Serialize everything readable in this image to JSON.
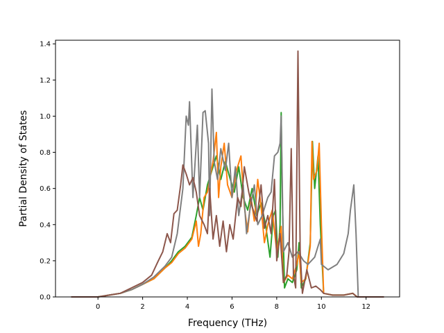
{
  "chart_data": {
    "type": "line",
    "xlabel": "Frequency (THz)",
    "ylabel": "Partial Density of States",
    "xlim": [
      -1.9,
      13.5
    ],
    "ylim": [
      0.0,
      1.42
    ],
    "xticks": [
      0,
      2,
      4,
      6,
      8,
      10,
      12
    ],
    "yticks": [
      0.0,
      0.2,
      0.4,
      0.6,
      0.8,
      1.0,
      1.2,
      1.4
    ],
    "tick_labels_x": [
      "0",
      "2",
      "4",
      "6",
      "8",
      "10",
      "12"
    ],
    "tick_labels_y": [
      "0.0",
      "0.2",
      "0.4",
      "0.6",
      "0.8",
      "1.0",
      "1.2",
      "1.4"
    ],
    "grid": false,
    "legend": "none",
    "series": [
      {
        "color": "#2ca02c",
        "points": [
          [
            -1.2,
            0
          ],
          [
            0,
            0
          ],
          [
            0.5,
            0.01
          ],
          [
            1.0,
            0.02
          ],
          [
            1.5,
            0.04
          ],
          [
            2.0,
            0.07
          ],
          [
            2.5,
            0.1
          ],
          [
            3.0,
            0.16
          ],
          [
            3.3,
            0.2
          ],
          [
            3.6,
            0.25
          ],
          [
            3.9,
            0.28
          ],
          [
            4.2,
            0.33
          ],
          [
            4.4,
            0.45
          ],
          [
            4.55,
            0.55
          ],
          [
            4.7,
            0.48
          ],
          [
            4.9,
            0.62
          ],
          [
            5.1,
            0.7
          ],
          [
            5.3,
            0.78
          ],
          [
            5.5,
            0.65
          ],
          [
            5.7,
            0.75
          ],
          [
            5.9,
            0.66
          ],
          [
            6.1,
            0.58
          ],
          [
            6.3,
            0.72
          ],
          [
            6.5,
            0.55
          ],
          [
            6.7,
            0.48
          ],
          [
            6.9,
            0.6
          ],
          [
            7.1,
            0.45
          ],
          [
            7.3,
            0.52
          ],
          [
            7.5,
            0.4
          ],
          [
            7.7,
            0.22
          ],
          [
            7.85,
            0.45
          ],
          [
            7.95,
            0.48
          ],
          [
            8.05,
            0.22
          ],
          [
            8.15,
            0.4
          ],
          [
            8.2,
            1.02
          ],
          [
            8.25,
            0.55
          ],
          [
            8.35,
            0.05
          ],
          [
            8.5,
            0.1
          ],
          [
            8.7,
            0.08
          ],
          [
            8.9,
            0.15
          ],
          [
            9.0,
            0.3
          ],
          [
            9.1,
            0.05
          ],
          [
            9.3,
            0.1
          ],
          [
            9.5,
            0.3
          ],
          [
            9.6,
            0.86
          ],
          [
            9.7,
            0.6
          ],
          [
            9.85,
            0.78
          ],
          [
            9.95,
            0.4
          ],
          [
            10.1,
            0.02
          ],
          [
            10.5,
            0.01
          ],
          [
            11.0,
            0.01
          ],
          [
            11.4,
            0.02
          ],
          [
            11.6,
            0
          ],
          [
            12.8,
            0
          ]
        ]
      },
      {
        "color": "#ff7f0e",
        "points": [
          [
            -1.2,
            0
          ],
          [
            0,
            0
          ],
          [
            0.5,
            0.01
          ],
          [
            1.0,
            0.02
          ],
          [
            1.5,
            0.04
          ],
          [
            2.0,
            0.07
          ],
          [
            2.5,
            0.1
          ],
          [
            3.0,
            0.16
          ],
          [
            3.3,
            0.19
          ],
          [
            3.6,
            0.24
          ],
          [
            3.9,
            0.27
          ],
          [
            4.2,
            0.32
          ],
          [
            4.4,
            0.42
          ],
          [
            4.5,
            0.28
          ],
          [
            4.6,
            0.35
          ],
          [
            4.75,
            0.55
          ],
          [
            4.9,
            0.58
          ],
          [
            5.0,
            0.65
          ],
          [
            5.15,
            0.75
          ],
          [
            5.3,
            0.91
          ],
          [
            5.4,
            0.55
          ],
          [
            5.5,
            0.72
          ],
          [
            5.65,
            0.85
          ],
          [
            5.8,
            0.62
          ],
          [
            6.0,
            0.55
          ],
          [
            6.2,
            0.7
          ],
          [
            6.4,
            0.78
          ],
          [
            6.55,
            0.5
          ],
          [
            6.7,
            0.36
          ],
          [
            6.85,
            0.55
          ],
          [
            7.0,
            0.42
          ],
          [
            7.15,
            0.65
          ],
          [
            7.3,
            0.5
          ],
          [
            7.45,
            0.3
          ],
          [
            7.6,
            0.4
          ],
          [
            7.8,
            0.48
          ],
          [
            8.0,
            0.25
          ],
          [
            8.2,
            0.39
          ],
          [
            8.3,
            0.08
          ],
          [
            8.5,
            0.12
          ],
          [
            8.7,
            0.1
          ],
          [
            8.9,
            0.18
          ],
          [
            9.0,
            0.25
          ],
          [
            9.1,
            0.08
          ],
          [
            9.3,
            0.1
          ],
          [
            9.5,
            0.28
          ],
          [
            9.58,
            0.86
          ],
          [
            9.65,
            0.65
          ],
          [
            9.8,
            0.7
          ],
          [
            9.9,
            0.85
          ],
          [
            10.0,
            0.4
          ],
          [
            10.1,
            0.02
          ],
          [
            10.5,
            0.01
          ],
          [
            11.0,
            0.01
          ],
          [
            11.4,
            0.02
          ],
          [
            11.6,
            0
          ],
          [
            12.8,
            0
          ]
        ]
      },
      {
        "color": "#7f7f7f",
        "points": [
          [
            -1.2,
            0
          ],
          [
            0,
            0
          ],
          [
            0.5,
            0.01
          ],
          [
            1.0,
            0.02
          ],
          [
            1.5,
            0.04
          ],
          [
            2.0,
            0.07
          ],
          [
            2.5,
            0.11
          ],
          [
            3.0,
            0.17
          ],
          [
            3.3,
            0.22
          ],
          [
            3.55,
            0.35
          ],
          [
            3.8,
            0.6
          ],
          [
            3.95,
            1.0
          ],
          [
            4.05,
            0.95
          ],
          [
            4.1,
            1.08
          ],
          [
            4.25,
            0.55
          ],
          [
            4.45,
            0.95
          ],
          [
            4.55,
            0.55
          ],
          [
            4.7,
            1.02
          ],
          [
            4.8,
            1.03
          ],
          [
            4.95,
            0.85
          ],
          [
            5.0,
            0.45
          ],
          [
            5.1,
            1.15
          ],
          [
            5.2,
            0.75
          ],
          [
            5.35,
            0.65
          ],
          [
            5.5,
            0.82
          ],
          [
            5.7,
            0.7
          ],
          [
            5.85,
            0.85
          ],
          [
            6.0,
            0.55
          ],
          [
            6.15,
            0.72
          ],
          [
            6.3,
            0.45
          ],
          [
            6.5,
            0.62
          ],
          [
            6.65,
            0.35
          ],
          [
            6.8,
            0.48
          ],
          [
            7.0,
            0.62
          ],
          [
            7.15,
            0.4
          ],
          [
            7.35,
            0.45
          ],
          [
            7.6,
            0.55
          ],
          [
            7.75,
            0.58
          ],
          [
            7.9,
            0.78
          ],
          [
            8.05,
            0.8
          ],
          [
            8.15,
            0.85
          ],
          [
            8.2,
            1.0
          ],
          [
            8.3,
            0.25
          ],
          [
            8.5,
            0.3
          ],
          [
            8.7,
            0.22
          ],
          [
            8.95,
            0.25
          ],
          [
            9.2,
            0.2
          ],
          [
            9.4,
            0.18
          ],
          [
            9.7,
            0.22
          ],
          [
            9.85,
            0.28
          ],
          [
            9.95,
            0.32
          ],
          [
            10.0,
            0.18
          ],
          [
            10.3,
            0.15
          ],
          [
            10.7,
            0.18
          ],
          [
            11.0,
            0.24
          ],
          [
            11.2,
            0.35
          ],
          [
            11.3,
            0.48
          ],
          [
            11.45,
            0.62
          ],
          [
            11.55,
            0.35
          ],
          [
            11.65,
            0
          ],
          [
            12.8,
            0
          ]
        ]
      },
      {
        "color": "#8c564b",
        "points": [
          [
            -1.2,
            0
          ],
          [
            0,
            0
          ],
          [
            0.5,
            0.01
          ],
          [
            1.0,
            0.02
          ],
          [
            1.5,
            0.05
          ],
          [
            2.0,
            0.08
          ],
          [
            2.4,
            0.12
          ],
          [
            2.7,
            0.2
          ],
          [
            2.9,
            0.25
          ],
          [
            3.1,
            0.35
          ],
          [
            3.25,
            0.3
          ],
          [
            3.4,
            0.46
          ],
          [
            3.55,
            0.48
          ],
          [
            3.7,
            0.62
          ],
          [
            3.8,
            0.73
          ],
          [
            3.95,
            0.68
          ],
          [
            4.1,
            0.62
          ],
          [
            4.25,
            0.66
          ],
          [
            4.4,
            0.58
          ],
          [
            4.55,
            0.45
          ],
          [
            4.75,
            0.4
          ],
          [
            4.9,
            0.35
          ],
          [
            5.0,
            0.6
          ],
          [
            5.15,
            0.32
          ],
          [
            5.3,
            0.45
          ],
          [
            5.45,
            0.28
          ],
          [
            5.6,
            0.42
          ],
          [
            5.75,
            0.25
          ],
          [
            5.9,
            0.4
          ],
          [
            6.05,
            0.32
          ],
          [
            6.25,
            0.55
          ],
          [
            6.4,
            0.5
          ],
          [
            6.55,
            0.72
          ],
          [
            6.75,
            0.58
          ],
          [
            6.9,
            0.5
          ],
          [
            7.1,
            0.42
          ],
          [
            7.3,
            0.62
          ],
          [
            7.45,
            0.38
          ],
          [
            7.6,
            0.45
          ],
          [
            7.75,
            0.35
          ],
          [
            7.9,
            0.65
          ],
          [
            8.0,
            0.2
          ],
          [
            8.15,
            0.35
          ],
          [
            8.3,
            0.08
          ],
          [
            8.45,
            0.12
          ],
          [
            8.55,
            0.25
          ],
          [
            8.65,
            0.82
          ],
          [
            8.75,
            0.12
          ],
          [
            8.85,
            0.05
          ],
          [
            8.95,
            1.36
          ],
          [
            9.05,
            0.25
          ],
          [
            9.15,
            0.02
          ],
          [
            9.35,
            0.15
          ],
          [
            9.55,
            0.05
          ],
          [
            9.75,
            0.06
          ],
          [
            9.95,
            0.04
          ],
          [
            10.1,
            0.02
          ],
          [
            10.5,
            0.01
          ],
          [
            11.0,
            0.01
          ],
          [
            11.4,
            0.02
          ],
          [
            11.6,
            0
          ],
          [
            12.8,
            0
          ]
        ]
      }
    ]
  }
}
